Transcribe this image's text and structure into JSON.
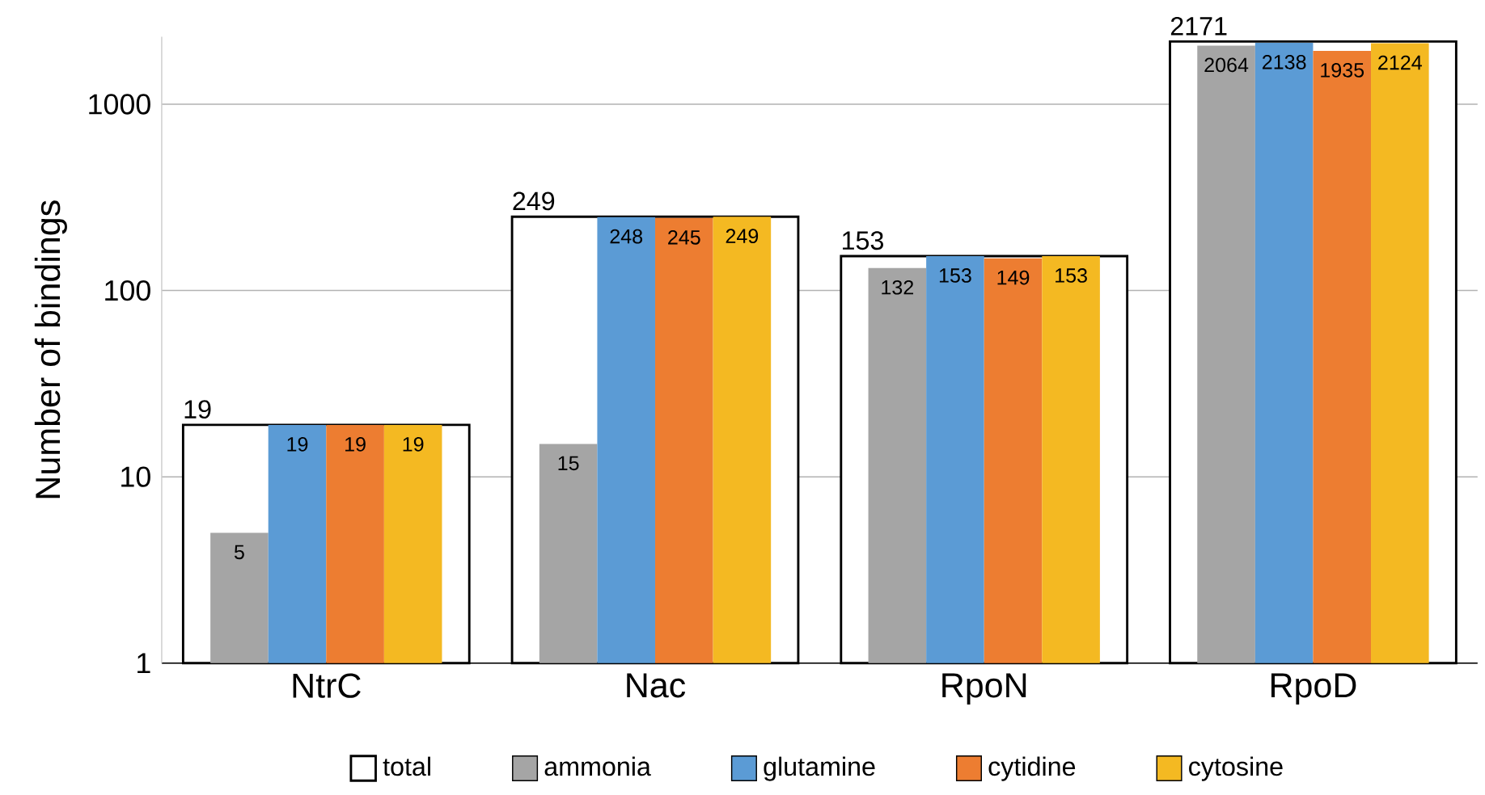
{
  "chart_data": {
    "type": "bar",
    "ylabel": "Number of bindings",
    "log": true,
    "categories": [
      "NtrC",
      "Nac",
      "RpoN",
      "RpoD"
    ],
    "series": [
      {
        "name": "total",
        "color": "#000000",
        "values": [
          19,
          249,
          153,
          2171
        ]
      },
      {
        "name": "ammonia",
        "color": "#a5a5a5",
        "values": [
          5,
          15,
          132,
          2064
        ]
      },
      {
        "name": "glutamine",
        "color": "#5b9bd5",
        "values": [
          19,
          248,
          153,
          2138
        ]
      },
      {
        "name": "cytidine",
        "color": "#ed7d31",
        "values": [
          19,
          245,
          149,
          1935
        ]
      },
      {
        "name": "cytosine",
        "color": "#f4b922",
        "values": [
          19,
          249,
          153,
          2124
        ]
      }
    ],
    "ylim": [
      1,
      2300
    ],
    "yticks": [
      1,
      10,
      100,
      1000
    ],
    "grid": "y",
    "legend": "bottom",
    "data_labels": true
  }
}
